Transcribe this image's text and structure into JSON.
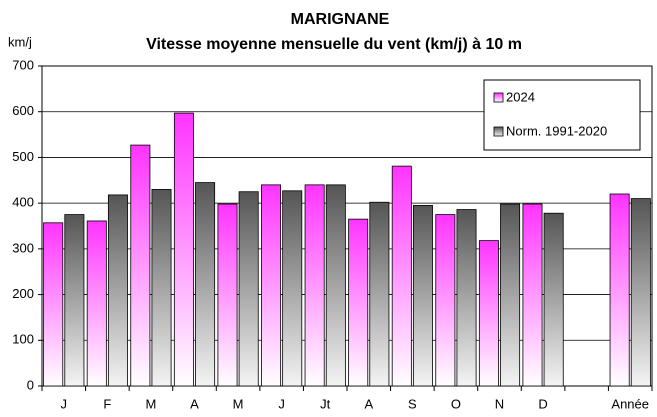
{
  "chart_data": {
    "type": "bar",
    "title": "MARIGNANE",
    "subtitle": "Vitesse moyenne mensuelle du vent (km/j) à 10 m",
    "y_label": "km/j",
    "categories": [
      "J",
      "F",
      "M",
      "A",
      "M",
      "J",
      "Jt",
      "A",
      "S",
      "O",
      "N",
      "D",
      null,
      "Année"
    ],
    "series": [
      {
        "name": "2024",
        "color": "#ff33ff",
        "values": [
          357,
          361,
          527,
          597,
          398,
          440,
          440,
          365,
          481,
          375,
          318,
          398,
          null,
          420
        ]
      },
      {
        "name": "Norm. 1991-2020",
        "color": "#555555",
        "values": [
          375,
          418,
          430,
          445,
          425,
          427,
          440,
          402,
          395,
          386,
          398,
          378,
          null,
          410
        ]
      }
    ],
    "ylim": [
      0,
      700
    ],
    "yticks": [
      0,
      100,
      200,
      300,
      400,
      500,
      600,
      700
    ],
    "grid": true,
    "legend": "upper right"
  }
}
